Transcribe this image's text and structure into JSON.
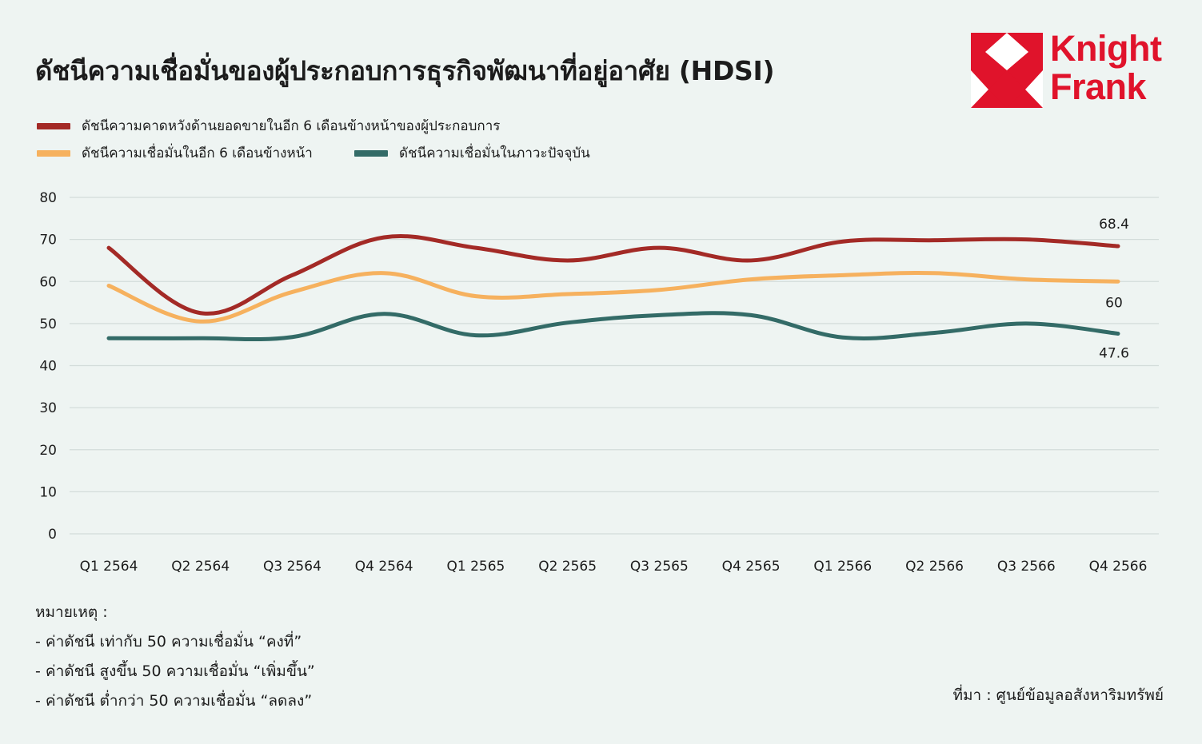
{
  "header": {
    "title": "ดัชนีความเชื่อมั่นของผู้ประกอบการธุรกิจพัฒนาที่อยู่อาศัย (HDSI)"
  },
  "logo": {
    "line1": "Knight",
    "line2": "Frank",
    "color": "#e0132b"
  },
  "chart_data": {
    "type": "line",
    "categories": [
      "Q1 2564",
      "Q2 2564",
      "Q3 2564",
      "Q4 2564",
      "Q1 2565",
      "Q2 2565",
      "Q3 2565",
      "Q4 2565",
      "Q1 2566",
      "Q2 2566",
      "Q3 2566",
      "Q4 2566"
    ],
    "series": [
      {
        "name": "ดัชนีความคาดหวังด้านยอดขายในอีก 6 เดือนข้างหน้าของผู้ประกอบการ",
        "color": "#a32a26",
        "values": [
          68,
          52.5,
          61.5,
          70.5,
          68,
          65,
          68,
          65,
          69.5,
          69.8,
          70,
          68.4
        ],
        "end_label": "68.4"
      },
      {
        "name": "ดัชนีความเชื่อมั่นในอีก 6 เดือนข้างหน้า",
        "color": "#f6b15e",
        "values": [
          59,
          50.5,
          57.5,
          62,
          56.5,
          57,
          58,
          60.5,
          61.5,
          62,
          60.5,
          60
        ],
        "end_label": "60"
      },
      {
        "name": "ดัชนีความเชื่อมั่นในภาวะปัจจุบัน",
        "color": "#336b67",
        "values": [
          46.5,
          46.5,
          46.8,
          52.3,
          47.2,
          50.2,
          52,
          52,
          46.7,
          47.8,
          50,
          47.6
        ],
        "end_label": "47.6"
      }
    ],
    "yticks": [
      "0",
      "10",
      "20",
      "30",
      "40",
      "50",
      "60",
      "70",
      "80"
    ],
    "ylim": [
      0,
      80
    ],
    "grid": true,
    "legend_position": "top-left"
  },
  "notes": {
    "heading": "หมายเหตุ :",
    "lines": [
      "- ค่าดัชนี เท่ากับ 50 ความเชื่อมั่น “คงที่”",
      "- ค่าดัชนี สูงขึ้น 50 ความเชื่อมั่น “เพิ่มขึ้น”",
      "- ค่าดัชนี ต่ำกว่า 50 ความเชื่อมั่น “ลดลง”"
    ]
  },
  "source": "ที่มา : ศูนย์ข้อมูลอสังหาริมทรัพย์"
}
